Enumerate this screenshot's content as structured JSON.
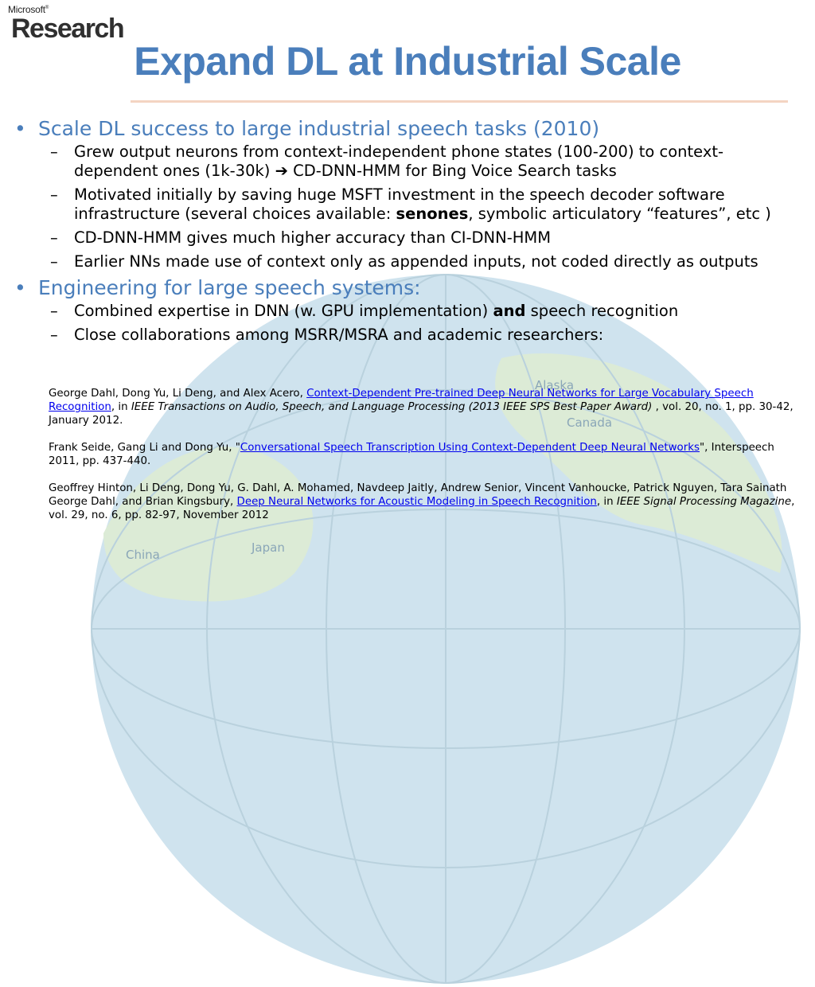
{
  "logo": {
    "brand": "Microsoft",
    "mark": "®",
    "division": "Research"
  },
  "title": "Expand DL at Industrial Scale",
  "bullet_glyph": "•",
  "dash_glyph": "–",
  "bullets": [
    {
      "text": "Scale DL success to large industrial speech tasks (2010)",
      "subs": [
        {
          "pre": "Grew output neurons from context-independent phone states (100-200) to context-dependent ones (1k-30k) ",
          "arrow": "➔",
          "post": " CD-DNN-HMM for Bing Voice Search tasks"
        },
        {
          "pre": "Motivated initially by saving huge MSFT investment in the speech decoder software infrastructure (several choices available: ",
          "bold": "senones",
          "post": ", symbolic articulatory “features”, etc )"
        },
        {
          "text": "CD-DNN-HMM gives much higher accuracy than CI-DNN-HMM"
        },
        {
          "text": "Earlier NNs made use of context only as appended inputs, not coded directly as outputs"
        }
      ]
    },
    {
      "text": "Engineering for large speech systems:",
      "subs": [
        {
          "pre": "Combined expertise in DNN (w. GPU implementation) ",
          "bold": "and",
          "post": " speech recognition"
        },
        {
          "text": "Close collaborations among MSRR/MSRA and academic researchers:"
        }
      ]
    }
  ],
  "references": [
    {
      "authors": "George Dahl, Dong Yu, Li Deng, and Alex Acero, ",
      "link": "Context-Dependent Pre-trained Deep Neural Networks for Large Vocabulary Speech Recognition",
      "mid": ", in ",
      "venue": "IEEE Transactions on Audio, Speech, and Language Processing (2013 IEEE SPS Best Paper Award)",
      "tail": " , vol. 20, no. 1, pp. 30-42, January 2012."
    },
    {
      "authors": "Frank Seide, Gang Li and Dong Yu, \"",
      "link": "Conversational Speech Transcription Using Context-Dependent Deep Neural Networks",
      "tail": "\", Interspeech 2011, pp. 437-440."
    },
    {
      "authors": "Geoffrey Hinton, Li Deng, Dong Yu, G. Dahl, A. Mohamed, Navdeep Jaitly, Andrew Senior, Vincent Vanhoucke, Patrick Nguyen, Tara Sainath George Dahl, and Brian Kingsbury, ",
      "link": "Deep Neural Networks for Acoustic Modeling in Speech Recognition",
      "mid": ", in ",
      "venue": "IEEE Signal Processing Magazine",
      "tail": ", vol. 29, no. 6, pp. 82-97, November 2012"
    }
  ],
  "globe": {
    "ocean_color": "#cfe3ee",
    "land_color": "#dcebd6",
    "grid_color": "#b9d1dd",
    "label_color": "#8aa6b8",
    "labels": [
      "Alaska",
      "Canada",
      "China",
      "Japan"
    ]
  }
}
